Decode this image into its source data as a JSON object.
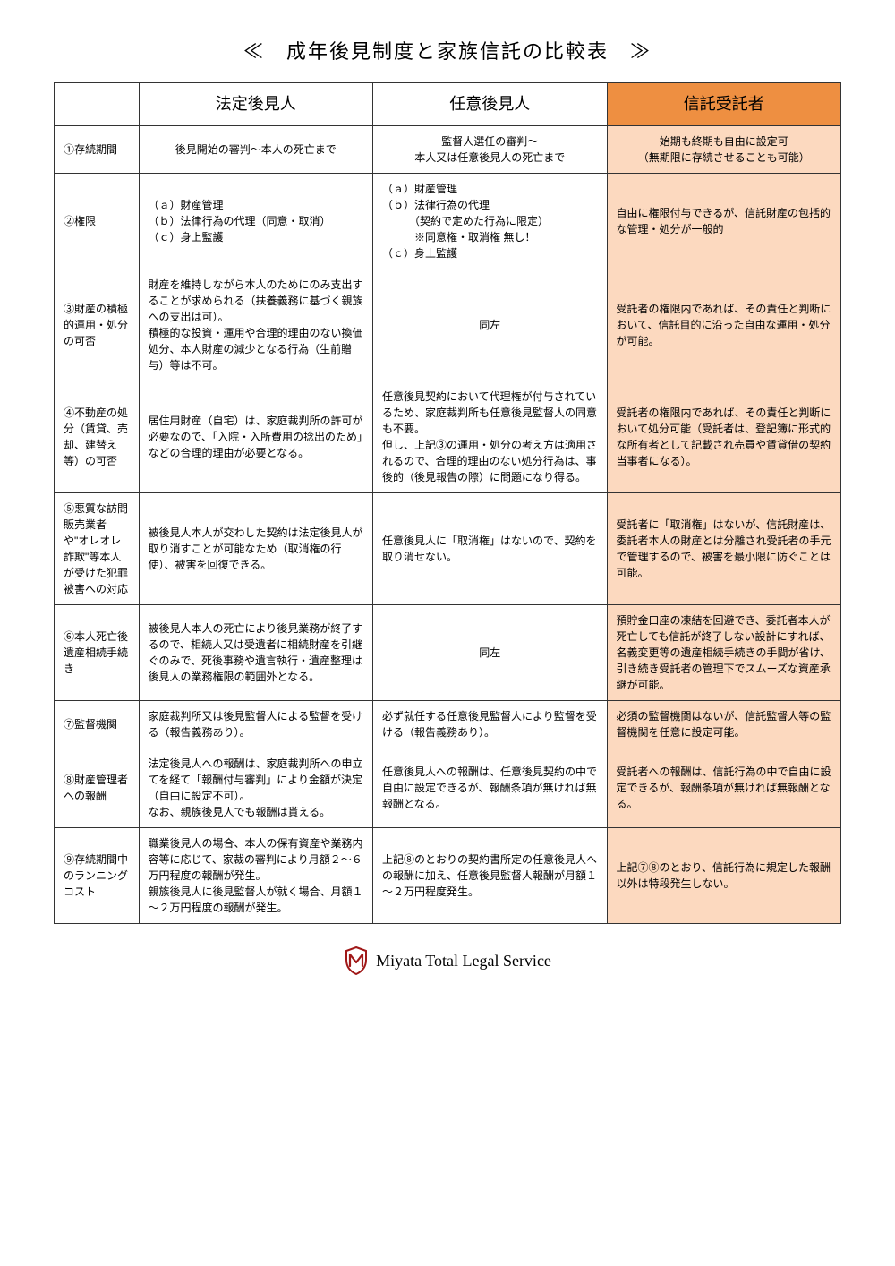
{
  "title": "≪　成年後見制度と家族信託の比較表　≫",
  "headers": {
    "col1": "法定後見人",
    "col2": "任意後見人",
    "col3": "信託受託者"
  },
  "rows": [
    {
      "label": "①存続期間",
      "c1": "後見開始の審判～本人の死亡まで",
      "c2": "監督人選任の審判～\n本人又は任意後見人の死亡まで",
      "c3": "始期も終期も自由に設定可\n（無期限に存続させることも可能）",
      "c1align": "center",
      "c2align": "center",
      "c3align": "center"
    },
    {
      "label": "②権限",
      "c1": "（ａ）財産管理\n（ｂ）法律行為の代理（同意・取消）\n（ｃ）身上監護",
      "c2": "（ａ）財産管理\n（ｂ）法律行為の代理\n　　　（契約で定めた行為に限定）\n　　　※同意権・取消権 無し！\n（ｃ）身上監護",
      "c3": "自由に権限付与できるが、信託財産の包括的な管理・処分が一般的"
    },
    {
      "label": "③財産の積極的運用・処分の可否",
      "c1": "財産を維持しながら本人のためにのみ支出することが求められる（扶養義務に基づく親族への支出は可）。\n積極的な投資・運用や合理的理由のない換価処分、本人財産の減少となる行為（生前贈与）等は不可。",
      "c2": "同左",
      "c3": "受託者の権限内であれば、その責任と判断において、信託目的に沿った自由な運用・処分が可能。",
      "c2align": "center"
    },
    {
      "label": "④不動産の処分（賃貸、売却、建替え等）の可否",
      "c1": "居住用財産（自宅）は、家庭裁判所の許可が必要なので、「入院・入所費用の捻出のため」などの合理的理由が必要となる。",
      "c2": "任意後見契約において代理権が付与されているため、家庭裁判所も任意後見監督人の同意も不要。\n但し、上記③の運用・処分の考え方は適用されるので、合理的理由のない処分行為は、事後的（後見報告の際）に問題になり得る。",
      "c3": "受託者の権限内であれば、その責任と判断において処分可能（受託者は、登記簿に形式的な所有者として記載され売買や賃貸借の契約当事者になる）。"
    },
    {
      "label": "⑤悪質な訪問販売業者や\"オレオレ詐欺\"等本人が受けた犯罪被害への対応",
      "c1": "被後見人本人が交わした契約は法定後見人が取り消すことが可能なため（取消権の行使）、被害を回復できる。",
      "c2": "任意後見人に「取消権」はないので、契約を取り消せない。",
      "c3": "受託者に「取消権」はないが、信託財産は、委託者本人の財産とは分離され受託者の手元で管理するので、被害を最小限に防ぐことは可能。"
    },
    {
      "label": "⑥本人死亡後遺産相続手続き",
      "c1": "被後見人本人の死亡により後見業務が終了するので、相続人又は受遺者に相続財産を引継ぐのみで、死後事務や遺言執行・遺産整理は後見人の業務権限の範囲外となる。",
      "c2": "同左",
      "c3": "預貯金口座の凍結を回避でき、委託者本人が死亡しても信託が終了しない設計にすれば、名義変更等の遺産相続手続きの手間が省け、引き続き受託者の管理下でスムーズな資産承継が可能。",
      "c2align": "center"
    },
    {
      "label": "⑦監督機関",
      "c1": "家庭裁判所又は後見監督人による監督を受ける（報告義務あり）。",
      "c2": "必ず就任する任意後見監督人により監督を受ける（報告義務あり）。",
      "c3": "必須の監督機関はないが、信託監督人等の監督機関を任意に設定可能。"
    },
    {
      "label": "⑧財産管理者への報酬",
      "c1": "法定後見人への報酬は、家庭裁判所への申立てを経て「報酬付与審判」により金額が決定（自由に設定不可）。\nなお、親族後見人でも報酬は貰える。",
      "c2": "任意後見人への報酬は、任意後見契約の中で自由に設定できるが、報酬条項が無ければ無報酬となる。",
      "c3": "受託者への報酬は、信託行為の中で自由に設定できるが、報酬条項が無ければ無報酬となる。"
    },
    {
      "label": "⑨存続期間中のランニングコスト",
      "c1": "職業後見人の場合、本人の保有資産や業務内容等に応じて、家裁の審判により月額２～６万円程度の報酬が発生。\n親族後見人に後見監督人が就く場合、月額１～２万円程度の報酬が発生。",
      "c2": "上記⑧のとおりの契約書所定の任意後見人への報酬に加え、任意後見監督人報酬が月額１～２万円程度発生。",
      "c3": "上記⑦⑧のとおり、信託行為に規定した報酬以外は特段発生しない。"
    }
  ],
  "footer": "Miyata Total Legal Service",
  "colors": {
    "highlight_header": "#ee8f41",
    "highlight_cell": "#fcd9bf",
    "logo": "#a01818"
  }
}
